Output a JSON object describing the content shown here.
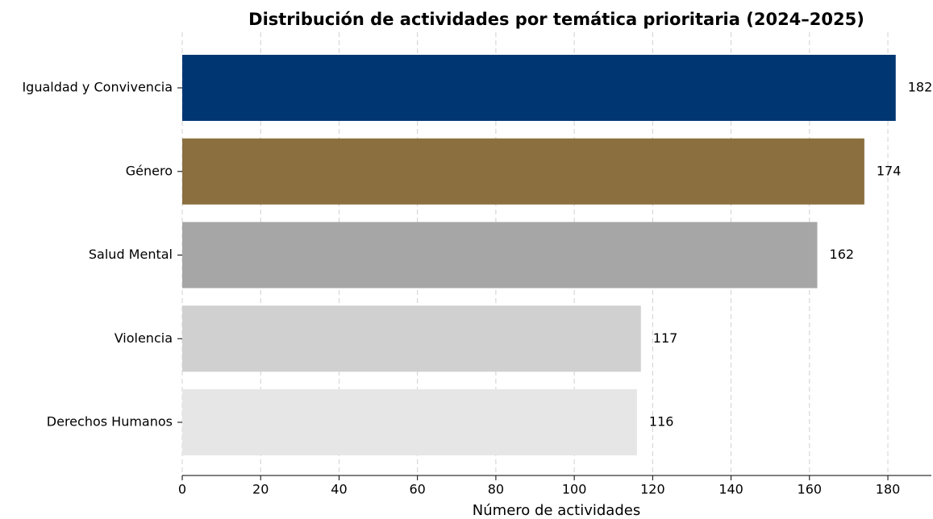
{
  "chart_data": {
    "type": "barh",
    "title": "Distribución de actividades por temática prioritaria (2024–2025)",
    "xlabel": "Número de actividades",
    "categories": [
      "Igualdad y Convivencia",
      "Género",
      "Salud Mental",
      "Violencia",
      "Derechos Humanos"
    ],
    "values": [
      182,
      174,
      162,
      117,
      116
    ],
    "colors": [
      "#003672",
      "#8b6f3f",
      "#a6a6a6",
      "#d0d0d0",
      "#e6e6e6"
    ],
    "xlim": [
      0,
      191.1
    ],
    "xticks": [
      0,
      20,
      40,
      60,
      80,
      100,
      120,
      140,
      160,
      180
    ],
    "grid": true
  }
}
